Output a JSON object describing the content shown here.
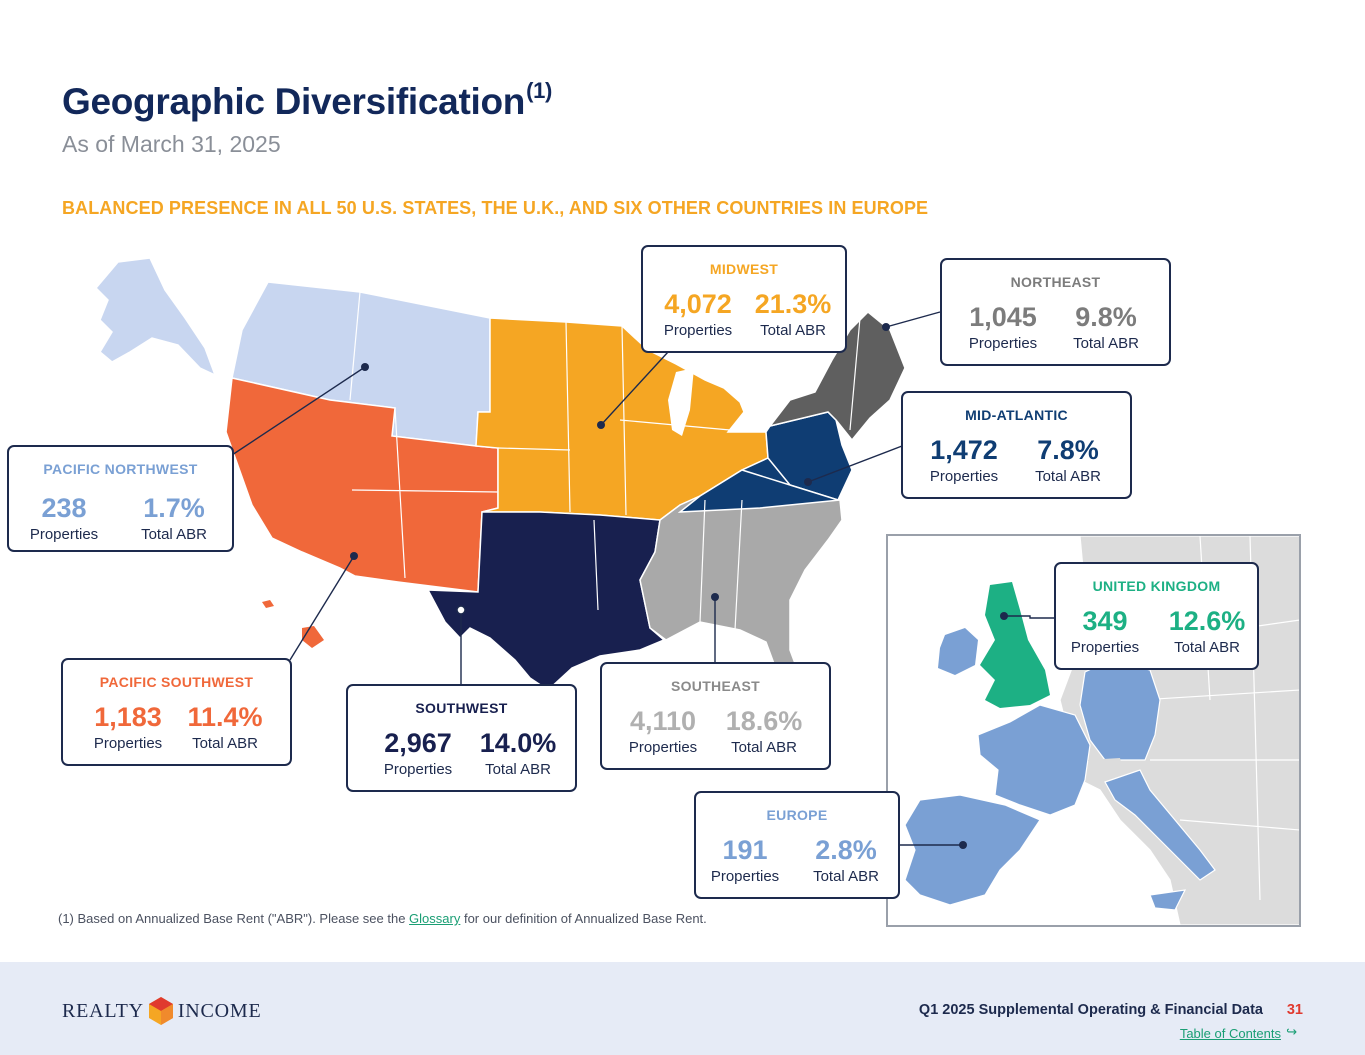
{
  "header": {
    "title": "Geographic Diversification",
    "title_sup": "(1)",
    "subtitle": "As of March 31, 2025",
    "tagline": "BALANCED PRESENCE IN ALL 50 U.S. STATES, THE U.K., AND SIX OTHER COUNTRIES IN EUROPE"
  },
  "regions": {
    "pacific_northwest": {
      "name": "PACIFIC NORTHWEST",
      "properties": "238",
      "abr": "1.7%",
      "properties_label": "Properties",
      "abr_label": "Total ABR",
      "color": "#7aa0d4"
    },
    "pacific_southwest": {
      "name": "PACIFIC SOUTHWEST",
      "properties": "1,183",
      "abr": "11.4%",
      "properties_label": "Properties",
      "abr_label": "Total ABR",
      "color": "#f0683a"
    },
    "southwest": {
      "name": "SOUTHWEST",
      "properties": "2,967",
      "abr": "14.0%",
      "properties_label": "Properties",
      "abr_label": "Total ABR",
      "color": "#18204f"
    },
    "midwest": {
      "name": "MIDWEST",
      "properties": "4,072",
      "abr": "21.3%",
      "properties_label": "Properties",
      "abr_label": "Total ABR",
      "color": "#f5a623"
    },
    "southeast": {
      "name": "SOUTHEAST",
      "properties": "4,110",
      "abr": "18.6%",
      "properties_label": "Properties",
      "abr_label": "Total ABR",
      "color": "#a9a9a9"
    },
    "northeast": {
      "name": "NORTHEAST",
      "properties": "1,045",
      "abr": "9.8%",
      "properties_label": "Properties",
      "abr_label": "Total ABR",
      "color": "#7c7c7c"
    },
    "mid_atlantic": {
      "name": "MID-ATLANTIC",
      "properties": "1,472",
      "abr": "7.8%",
      "properties_label": "Properties",
      "abr_label": "Total ABR",
      "color": "#0f3d73"
    },
    "united_kingdom": {
      "name": "UNITED KINGDOM",
      "properties": "349",
      "abr": "12.6%",
      "properties_label": "Properties",
      "abr_label": "Total ABR",
      "color": "#1db084"
    },
    "europe": {
      "name": "EUROPE",
      "properties": "191",
      "abr": "2.8%",
      "properties_label": "Properties",
      "abr_label": "Total ABR",
      "color": "#7aa0d4"
    }
  },
  "footnote": {
    "prefix": "(1)  Based on Annualized Base Rent (\"ABR\"). Please see the ",
    "link": "Glossary",
    "suffix": " for our definition of Annualized Base Rent."
  },
  "footer": {
    "logo_left": "REALTY",
    "logo_right": "INCOME",
    "doc_title": "Q1 2025 Supplemental Operating & Financial Data",
    "page_number": "31",
    "toc_link": "Table of Contents",
    "toc_arrow": "↪"
  }
}
